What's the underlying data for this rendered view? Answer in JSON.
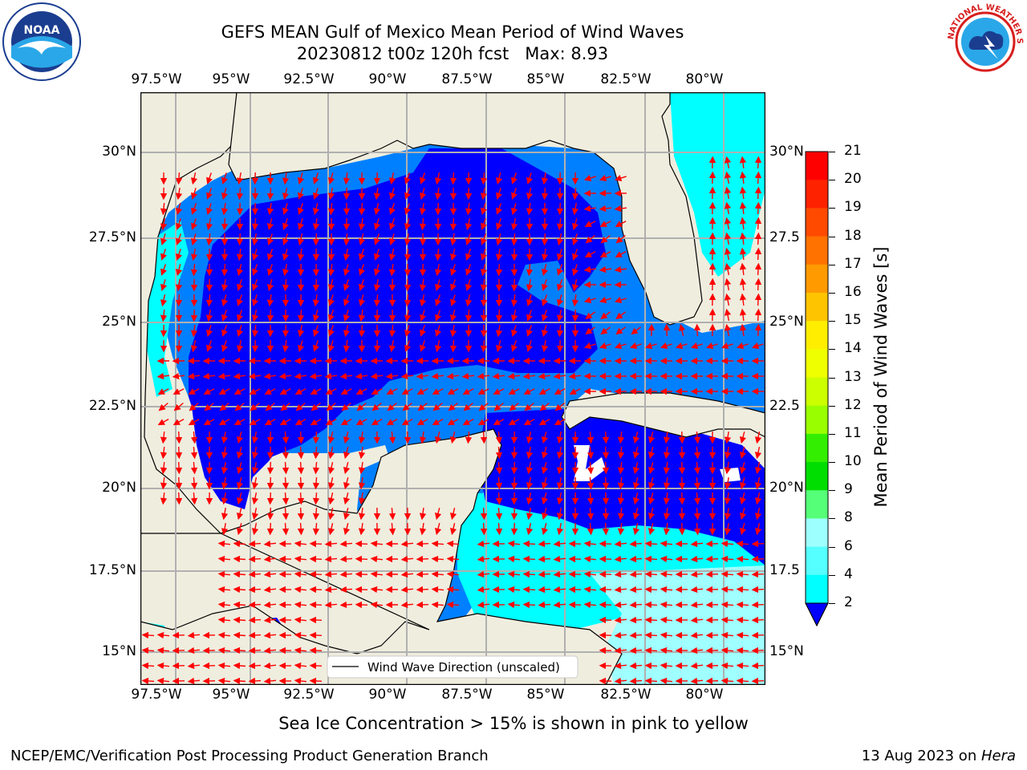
{
  "title": {
    "line1": "GEFS MEAN Gulf of Mexico Mean Period of Wind Waves",
    "line2": "20230812 t00z 120h fcst   Max: 8.93"
  },
  "logos": {
    "left": {
      "name": "noaa-logo",
      "text": "NOAA",
      "ring": "NATIONAL OCEANIC AND ATMOSPHERIC ADMINISTRATION · U.S. DEPARTMENT OF COMMERCE"
    },
    "right": {
      "name": "nws-logo",
      "ring": "NATIONAL WEATHER SERVICE"
    }
  },
  "map": {
    "lon_labels_top": [
      "97.5°W",
      "95°W",
      "92.5°W",
      "90°W",
      "87.5°W",
      "85°W",
      "82.5°W",
      "80°W"
    ],
    "lon_labels_bottom": [
      "97.5°W",
      "95°W",
      "92.5°W",
      "90°W",
      "87.5°W",
      "85°W",
      "82.5°W",
      "80°W"
    ],
    "lat_labels_left": [
      "30°N",
      "27.5°N",
      "25°N",
      "22.5°N",
      "20°N",
      "17.5°N",
      "15°N"
    ],
    "lat_labels_right": [
      "30°N",
      "27.5",
      "25°N",
      "22.5",
      "20°N",
      "17.5",
      "15°N"
    ],
    "land_color": "#efedde",
    "ocean_colors": {
      "2-4": "#0000fe",
      "4-6": "#0080ff",
      "6-8": "#00ffff",
      "8-9": "#a0ffff"
    },
    "legend_text": "Wind Wave Direction (unscaled)"
  },
  "colorbar": {
    "label": "Mean Period of Wind Waves [s]",
    "ticks": [
      "21",
      "20",
      "19",
      "18",
      "17",
      "16",
      "15",
      "14",
      "13",
      "12",
      "11",
      "10",
      "9",
      "8",
      "6",
      "4",
      "2"
    ],
    "colors": [
      "#ff0000",
      "#ff2200",
      "#ff4a00",
      "#ff7200",
      "#ff9a00",
      "#ffc400",
      "#ffee00",
      "#f0ff00",
      "#ccff00",
      "#99ff00",
      "#33ee00",
      "#00dd00",
      "#55ff77",
      "#9effff",
      "#55ffff",
      "#00ffff",
      "#0080ff"
    ],
    "extend_color": "#0000fe"
  },
  "subtitle": "Sea Ice Concentration > 15% is shown in pink to yellow",
  "footer": {
    "left": "NCEP/EMC/Verification Post Processing Product Generation Branch",
    "right_prefix": "13 Aug 2023 on ",
    "right_italic": "Hera"
  }
}
